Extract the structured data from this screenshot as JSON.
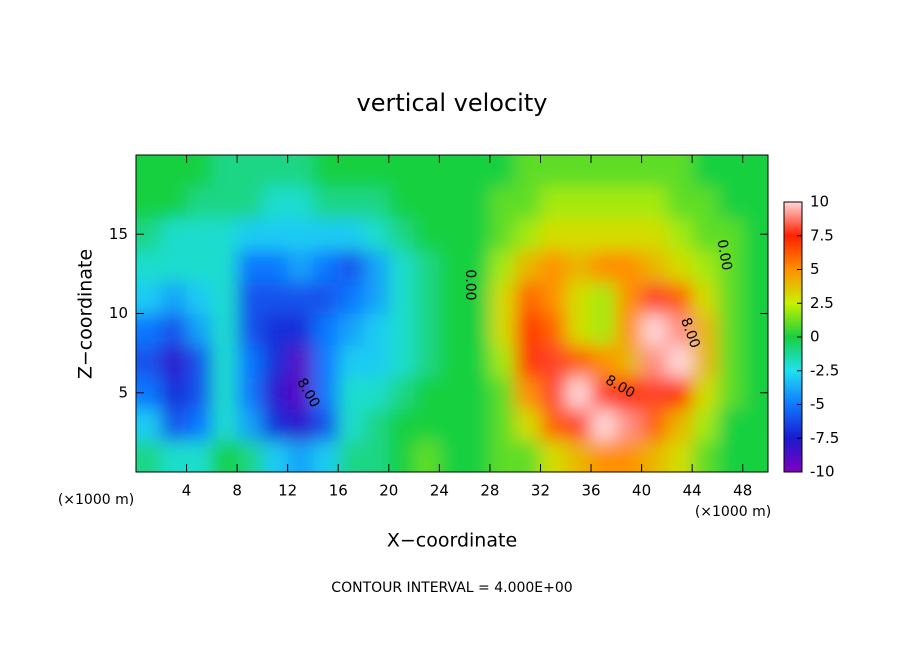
{
  "chart_data": {
    "type": "contourf",
    "title": "vertical velocity",
    "xlabel": "X−coordinate",
    "ylabel": "Z−coordinate",
    "xunit": "(×1000 m)",
    "yunit": "(×1000 m)",
    "footer": "CONTOUR INTERVAL = 4.000E+00",
    "xlim": [
      0,
      50
    ],
    "ylim": [
      0,
      20
    ],
    "xticks": [
      4,
      8,
      12,
      16,
      20,
      24,
      28,
      32,
      36,
      40,
      44,
      48
    ],
    "yticks": [
      5,
      10,
      15
    ],
    "clim": [
      -10,
      10
    ],
    "cticks": [
      10,
      7.5,
      5,
      2.5,
      0,
      -2.5,
      -5,
      -7.5,
      -10
    ],
    "colors": [
      "#8000c0",
      "#1a1ad0",
      "#1078ff",
      "#20e0f0",
      "#18d040",
      "#c8f000",
      "#ff9000",
      "#ff2000",
      "#ffd8d8"
    ],
    "contour_labels": [
      "0.00",
      "0.00",
      "8.00",
      "8.00",
      "8.00"
    ],
    "x": [
      1,
      3,
      5,
      7,
      9,
      11,
      13,
      15,
      17,
      19,
      21,
      23,
      25,
      27,
      29,
      31,
      33,
      35,
      37,
      39,
      41,
      43,
      45,
      47,
      49
    ],
    "y": [
      1,
      3,
      5,
      7,
      9,
      11,
      13,
      15,
      17,
      19
    ],
    "z": [
      [
        -1,
        -2,
        -2,
        0,
        -1,
        -3,
        -4,
        -3,
        -1,
        -1,
        0,
        1,
        0,
        0,
        1,
        1,
        3,
        4,
        5,
        5,
        4,
        3,
        1,
        0,
        0
      ],
      [
        -3,
        -6,
        -5,
        -2,
        -4,
        -7,
        -8,
        -6,
        -2,
        -1,
        0,
        0,
        0,
        0,
        1,
        3,
        6,
        8,
        10,
        9,
        6,
        4,
        2,
        0,
        0
      ],
      [
        -5,
        -7,
        -6,
        -2,
        -5,
        -8,
        -9,
        -5,
        -2,
        -2,
        -1,
        0,
        0,
        0,
        1,
        5,
        8,
        10,
        8,
        7,
        8,
        7,
        3,
        1,
        0
      ],
      [
        -6,
        -8,
        -6,
        -2,
        -5,
        -7,
        -9,
        -5,
        -3,
        -3,
        -2,
        -1,
        0,
        0,
        2,
        7,
        8,
        6,
        5,
        4,
        9,
        10,
        4,
        1,
        0
      ],
      [
        -5,
        -6,
        -4,
        -2,
        -6,
        -7,
        -7,
        -5,
        -4,
        -3,
        -2,
        -1,
        0,
        0,
        3,
        7,
        6,
        3,
        2,
        5,
        10,
        9,
        4,
        1,
        0
      ],
      [
        -3,
        -4,
        -3,
        -2,
        -6,
        -6,
        -6,
        -6,
        -5,
        -4,
        -2,
        -1,
        0,
        0,
        3,
        6,
        5,
        3,
        2,
        5,
        8,
        6,
        3,
        1,
        0
      ],
      [
        -2,
        -2,
        -2,
        -2,
        -5,
        -5,
        -4,
        -5,
        -6,
        -4,
        -2,
        -1,
        0,
        0,
        2,
        4,
        5,
        4,
        5,
        5,
        4,
        3,
        2,
        1,
        0
      ],
      [
        -1,
        -2,
        -2,
        -2,
        -3,
        -3,
        -3,
        -3,
        -3,
        -2,
        -1,
        0,
        0,
        0,
        1,
        2,
        3,
        3,
        3,
        3,
        3,
        2,
        1,
        1,
        0
      ],
      [
        0,
        0,
        -1,
        -1,
        -1,
        -2,
        -2,
        -1,
        -1,
        -1,
        0,
        0,
        0,
        0,
        1,
        1,
        2,
        2,
        2,
        2,
        2,
        1,
        1,
        0,
        0
      ],
      [
        0,
        0,
        0,
        -1,
        -1,
        -1,
        -1,
        0,
        0,
        0,
        0,
        0,
        0,
        0,
        0,
        1,
        1,
        1,
        1,
        1,
        1,
        1,
        0,
        0,
        0
      ]
    ]
  }
}
